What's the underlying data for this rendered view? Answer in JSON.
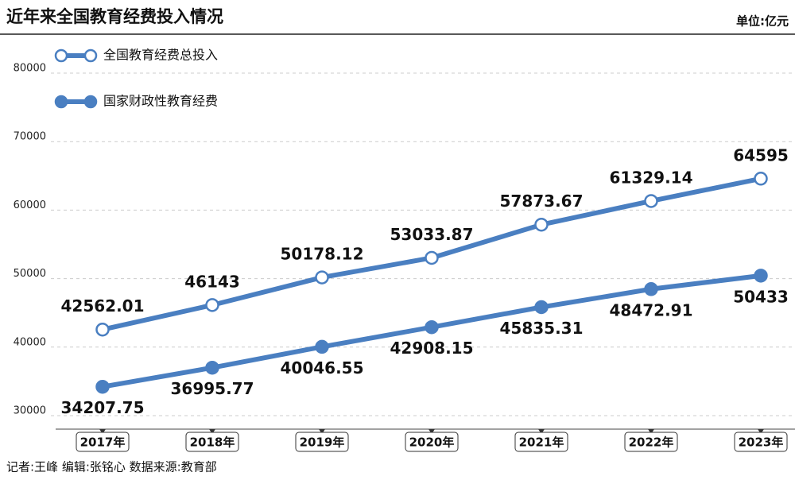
{
  "chart_data": {
    "type": "line",
    "title": "近年来全国教育经费投入情况",
    "unit": "单位:亿元",
    "source": "记者:王峰  编辑:张铭心  数据来源:教育部",
    "categories": [
      "2017年",
      "2018年",
      "2019年",
      "2020年",
      "2021年",
      "2022年",
      "2023年"
    ],
    "series": [
      {
        "name": "全国教育经费总投入",
        "color": "#4a7fc1",
        "marker": "hollow",
        "label_position": "above",
        "values": [
          42562.01,
          46143,
          50178.12,
          53033.87,
          57873.67,
          61329.14,
          64595
        ]
      },
      {
        "name": "国家财政性教育经费",
        "color": "#4a7fc1",
        "marker": "filled",
        "label_position": "below",
        "values": [
          34207.75,
          36995.77,
          40046.55,
          42908.15,
          45835.31,
          48472.91,
          50433
        ]
      }
    ],
    "ylim": [
      30000,
      80000
    ],
    "yticks": [
      30000,
      40000,
      50000,
      60000,
      70000,
      80000
    ],
    "grid": true
  }
}
